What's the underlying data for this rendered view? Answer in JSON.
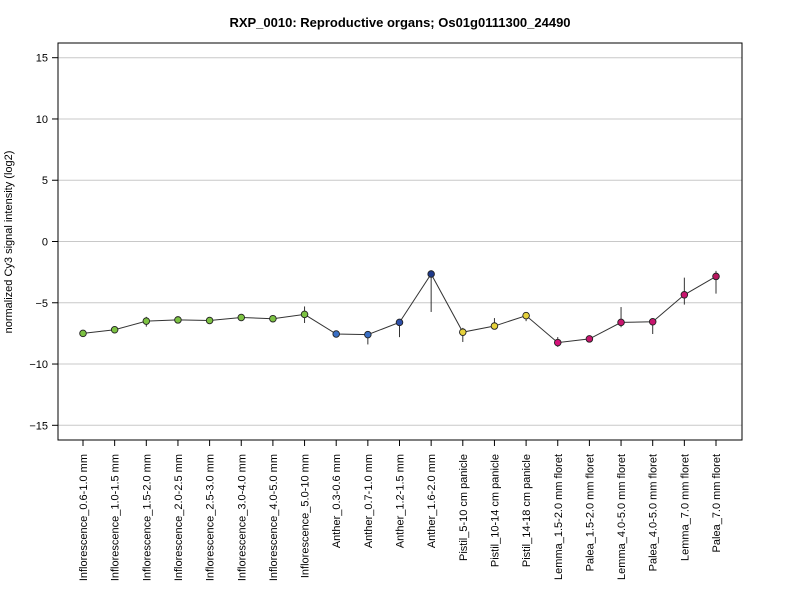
{
  "chart_data": {
    "type": "line",
    "title": "RXP_0010: Reproductive organs; Os01g0111300_24490",
    "xlabel": "",
    "ylabel": "normalized Cy3 signal intensity (log2)",
    "ylim": [
      -16.2,
      16.2
    ],
    "yticks": [
      -15,
      -10,
      -5,
      0,
      5,
      10,
      15
    ],
    "grid": "horizontal",
    "categories": [
      "Inflorescence_0.6-1.0 mm",
      "Inflorescence_1.0-1.5 mm",
      "Inflorescence_1.5-2.0 mm",
      "Inflorescence_2.0-2.5 mm",
      "Inflorescence_2.5-3.0 mm",
      "Inflorescence_3.0-4.0 mm",
      "Inflorescence_4.0-5.0 mm",
      "Inflorescence_5.0-10 mm",
      "Anther_0.3-0.6 mm",
      "Anther_0.7-1.0 mm",
      "Anther_1.2-1.5 mm",
      "Anther_1.6-2.0 mm",
      "Pistil_5-10 cm panicle",
      "Pistil_10-14 cm panicle",
      "Pistil_14-18 cm panicle",
      "Lemma_1.5-2.0 mm floret",
      "Palea_1.5-2.0 mm floret",
      "Lemma_4.0-5.0 mm floret",
      "Palea_4.0-5.0 mm floret",
      "Lemma_7.0 mm floret",
      "Palea_7.0 mm floret"
    ],
    "series": [
      {
        "values": [
          -7.5,
          -7.2,
          -6.5,
          -6.4,
          -6.45,
          -6.2,
          -6.3,
          -5.95,
          -7.55,
          -7.6,
          -6.6,
          -2.65,
          -7.4,
          -6.9,
          -6.05,
          -8.25,
          -7.95,
          -6.6,
          -6.55,
          -4.35,
          -2.85
        ],
        "err_low": [
          -7.5,
          -7.4,
          -6.95,
          -6.55,
          -6.6,
          -6.45,
          -6.45,
          -6.65,
          -7.65,
          -8.4,
          -7.8,
          -5.75,
          -8.2,
          -7.15,
          -6.5,
          -8.6,
          -8.1,
          -7.0,
          -7.55,
          -5.15,
          -4.25
        ],
        "err_high": [
          -7.5,
          -7.05,
          -6.15,
          -6.25,
          -6.3,
          -6.05,
          -6.15,
          -5.3,
          -7.45,
          -7.35,
          -6.35,
          -2.35,
          -7.05,
          -6.25,
          -5.8,
          -7.8,
          -7.75,
          -5.35,
          -6.3,
          -2.95,
          -2.4
        ],
        "colors": [
          "#7cc242",
          "#7cc242",
          "#7cc242",
          "#7cc242",
          "#7cc242",
          "#7cc242",
          "#7cc242",
          "#7cc242",
          "#3a6fc4",
          "#3a6fc4",
          "#2e4fa8",
          "#1f3a8a",
          "#e6d23c",
          "#e6d23c",
          "#e6d23c",
          "#d4137a",
          "#c8156e",
          "#c8156e",
          "#c8156e",
          "#c8156e",
          "#b8165f"
        ]
      }
    ]
  }
}
